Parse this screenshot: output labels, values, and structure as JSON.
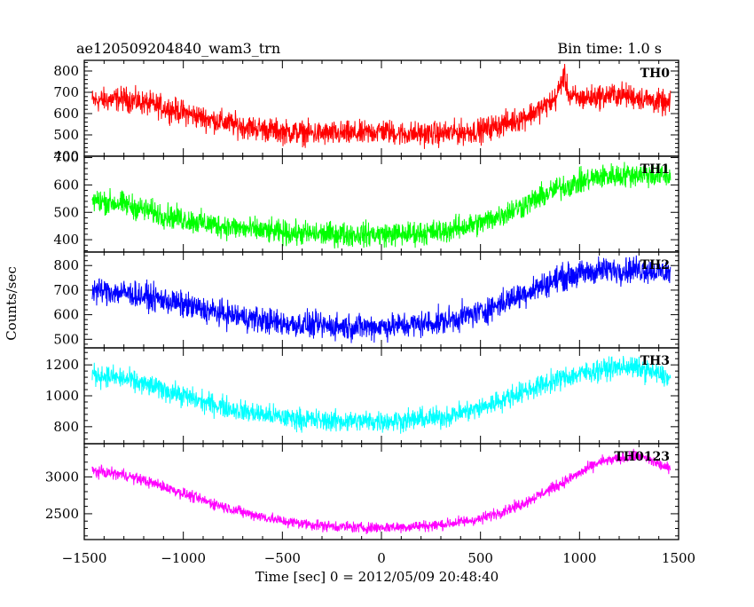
{
  "chart_data": {
    "type": "line",
    "title": "ae120509204840_wam3_trn",
    "subtitle": "Bin time: 1.0 s",
    "xlabel": "Time [sec] 0 = 2012/05/09 20:48:40",
    "ylabel": "Counts/sec",
    "xlim": [
      -1500,
      1500
    ],
    "x_ticks": [
      -1500,
      -1000,
      -500,
      0,
      500,
      1000,
      1500
    ],
    "x_tick_labels": [
      "−1500",
      "−1000",
      "−500",
      "0",
      "500",
      "1000",
      "1500"
    ],
    "grid": false,
    "series": [
      {
        "name": "TH0",
        "color": "#ff0000",
        "ylim": [
          400,
          850
        ],
        "y_ticks": [
          400,
          500,
          600,
          700,
          800
        ],
        "noise": 45,
        "x": [
          -1460,
          -1300,
          -1100,
          -900,
          -700,
          -500,
          -300,
          -100,
          0,
          100,
          300,
          500,
          700,
          800,
          880,
          920,
          950,
          1000,
          1100,
          1200,
          1300,
          1460
        ],
        "values": [
          660,
          670,
          630,
          580,
          540,
          515,
          505,
          505,
          520,
          505,
          505,
          520,
          575,
          620,
          670,
          780,
          680,
          670,
          680,
          690,
          675,
          640
        ]
      },
      {
        "name": "TH1",
        "color": "#00ff00",
        "ylim": [
          355,
          705
        ],
        "y_ticks": [
          400,
          500,
          600,
          700
        ],
        "noise": 35,
        "x": [
          -1460,
          -1300,
          -1100,
          -900,
          -700,
          -500,
          -300,
          -100,
          100,
          300,
          500,
          700,
          900,
          1100,
          1300,
          1460
        ],
        "values": [
          545,
          530,
          490,
          460,
          440,
          425,
          420,
          420,
          420,
          430,
          460,
          520,
          590,
          630,
          640,
          630
        ]
      },
      {
        "name": "TH2",
        "color": "#0000ff",
        "ylim": [
          465,
          855
        ],
        "y_ticks": [
          500,
          600,
          700,
          800
        ],
        "noise": 42,
        "x": [
          -1460,
          -1300,
          -1100,
          -900,
          -700,
          -500,
          -300,
          -100,
          100,
          300,
          500,
          700,
          900,
          1100,
          1300,
          1460
        ],
        "values": [
          700,
          690,
          660,
          620,
          590,
          565,
          555,
          550,
          555,
          570,
          610,
          680,
          750,
          780,
          785,
          770
        ]
      },
      {
        "name": "TH3",
        "color": "#00ffff",
        "ylim": [
          690,
          1310
        ],
        "y_ticks": [
          800,
          1000,
          1200
        ],
        "noise": 55,
        "x": [
          -1460,
          -1300,
          -1100,
          -900,
          -700,
          -500,
          -300,
          -100,
          100,
          300,
          500,
          700,
          900,
          1100,
          1250,
          1350,
          1460
        ],
        "values": [
          1140,
          1110,
          1040,
          960,
          900,
          860,
          840,
          835,
          840,
          860,
          920,
          1020,
          1110,
          1170,
          1190,
          1160,
          1110
        ]
      },
      {
        "name": "TH0123",
        "color": "#ff00ff",
        "ylim": [
          2150,
          3450
        ],
        "y_ticks": [
          2500,
          3000
        ],
        "noise": 60,
        "x": [
          -1460,
          -1300,
          -1100,
          -900,
          -700,
          -500,
          -300,
          -100,
          100,
          300,
          500,
          700,
          900,
          1100,
          1300,
          1460
        ],
        "values": [
          3080,
          3030,
          2870,
          2680,
          2520,
          2400,
          2340,
          2310,
          2320,
          2350,
          2430,
          2620,
          2900,
          3200,
          3290,
          3100
        ]
      }
    ]
  }
}
